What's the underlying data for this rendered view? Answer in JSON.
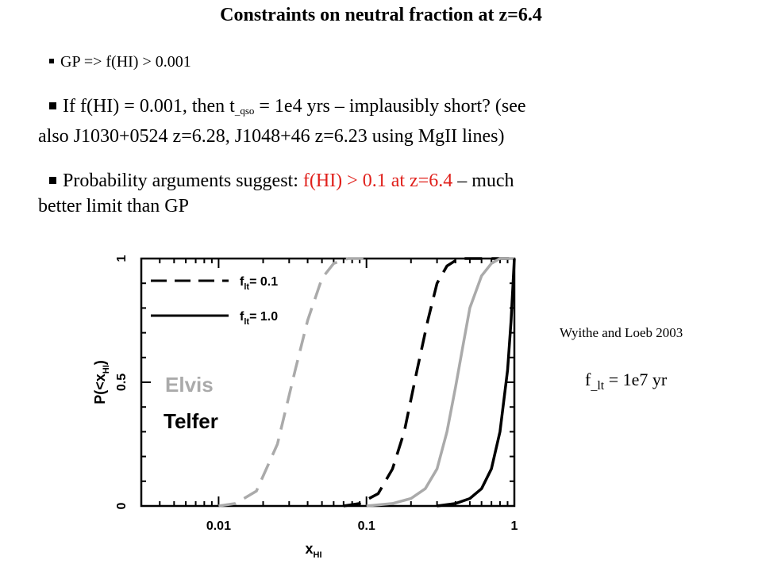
{
  "slide": {
    "title": "Constraints on neutral fraction at z=6.4",
    "bullet1": "GP => f(HI) > 0.001",
    "bullet2_a": "If f(HI) = 0.001, then  t",
    "bullet2_sub": "_qso",
    "bullet2_b": " = 1e4 yrs – implausibly short? (see",
    "bullet2_c": "also J1030+0524 z=6.28, J1048+46 z=6.23 using MgII lines)",
    "bullet3_a": "Probability arguments suggest:   ",
    "bullet3_red": "f(HI) > 0.1 at z=6.4",
    "bullet3_b": " – much",
    "bullet3_c": "better limit than GP",
    "credit": "Wyithe and Loeb 2003",
    "flt_a": "f",
    "flt_sub": "_lt",
    "flt_b": " =  1e7 yr"
  },
  "chart_data": {
    "type": "line",
    "xscale": "log",
    "xlim": [
      0.003,
      1
    ],
    "ylim": [
      0,
      1
    ],
    "xlabel": "x_HI",
    "ylabel": "P(<x_HI)",
    "xticklabels": [
      "0.01",
      "0.1",
      "1"
    ],
    "yticklabels": [
      "0",
      "0.5",
      "1"
    ],
    "legend": {
      "entries": [
        {
          "label": "f_lt= 0.1",
          "style": "dashed"
        },
        {
          "label": "f_lt= 1.0",
          "style": "solid"
        }
      ],
      "position": "top-left"
    },
    "annotations": [
      "Elvis",
      "Telfer"
    ],
    "colors": {
      "elvis": "#aaaaaa",
      "telfer": "#000000"
    },
    "series": [
      {
        "group": "Elvis",
        "style": "dashed",
        "color": "#aaaaaa",
        "x": [
          0.01,
          0.013,
          0.018,
          0.025,
          0.033,
          0.04,
          0.05,
          0.06,
          0.075,
          0.09,
          0.1
        ],
        "y": [
          0,
          0.01,
          0.06,
          0.25,
          0.55,
          0.75,
          0.92,
          0.98,
          1.0,
          1.0,
          1.0
        ]
      },
      {
        "group": "Telfer",
        "style": "dashed",
        "color": "#000000",
        "x": [
          0.07,
          0.09,
          0.12,
          0.15,
          0.18,
          0.22,
          0.26,
          0.3,
          0.35,
          0.42,
          1.0
        ],
        "y": [
          0,
          0.01,
          0.05,
          0.15,
          0.3,
          0.55,
          0.75,
          0.9,
          0.97,
          1.0,
          1.0
        ]
      },
      {
        "group": "Elvis",
        "style": "solid",
        "color": "#aaaaaa",
        "x": [
          0.1,
          0.15,
          0.2,
          0.25,
          0.3,
          0.35,
          0.4,
          0.45,
          0.5,
          0.6,
          0.7,
          0.8,
          1.0
        ],
        "y": [
          0,
          0.01,
          0.03,
          0.07,
          0.15,
          0.3,
          0.48,
          0.65,
          0.8,
          0.93,
          0.98,
          1.0,
          1.0
        ]
      },
      {
        "group": "Telfer",
        "style": "solid",
        "color": "#000000",
        "x": [
          0.3,
          0.4,
          0.5,
          0.6,
          0.7,
          0.8,
          0.9,
          0.95,
          1.0
        ],
        "y": [
          0,
          0.01,
          0.03,
          0.07,
          0.15,
          0.3,
          0.55,
          0.75,
          1.0
        ]
      }
    ]
  }
}
